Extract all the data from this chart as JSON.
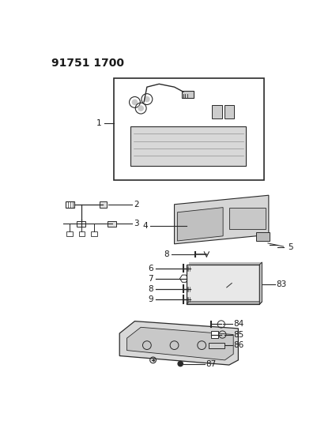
{
  "title": "91751 1700",
  "background_color": "#ffffff",
  "line_color": "#2a2a2a",
  "text_color": "#1a1a1a",
  "figsize": [
    4.01,
    5.33
  ],
  "dpi": 100,
  "label_fontsize": 7.5,
  "title_fontsize": 10
}
